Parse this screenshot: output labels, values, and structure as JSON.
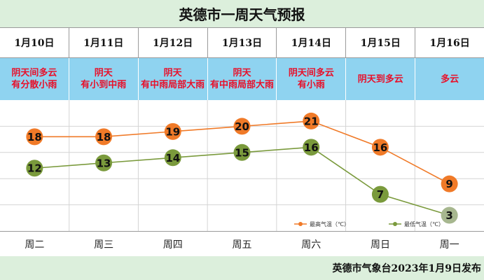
{
  "title": "英德市一周天气预报",
  "dates": [
    "1月10日",
    "1月11日",
    "1月12日",
    "1月13日",
    "1月14日",
    "1月15日",
    "1月16日"
  ],
  "conditions": [
    "阴天间多云\n有分散小雨",
    "阴天\n有小到中雨",
    "阴天\n有中雨局部大雨",
    "阴天\n有中雨局部大雨",
    "阴天间多云\n有小雨",
    "阴天到多云",
    "多云"
  ],
  "weekdays": [
    "周二",
    "周三",
    "周四",
    "周五",
    "周六",
    "周日",
    "周一"
  ],
  "footer": "英德市气象台2023年1月9日发布",
  "colors": {
    "high": "#f07a28",
    "low": "#7a9a3c",
    "condition_text": "#e8102a",
    "condition_bg": "#8fd3f0",
    "header_bg": "#dcefdc"
  },
  "chart_data": {
    "type": "line",
    "categories": [
      "周二",
      "周三",
      "周四",
      "周五",
      "周六",
      "周日",
      "周一"
    ],
    "series": [
      {
        "name": "最高气温（℃）",
        "values": [
          18,
          18,
          19,
          20,
          21,
          16,
          9
        ],
        "color": "#f07a28"
      },
      {
        "name": "最低气温（℃）",
        "values": [
          12,
          13,
          14,
          15,
          16,
          7,
          3
        ],
        "color": "#7a9a3c"
      }
    ],
    "ylim": [
      0,
      25
    ],
    "grid": true,
    "legend": "bottom-right"
  }
}
